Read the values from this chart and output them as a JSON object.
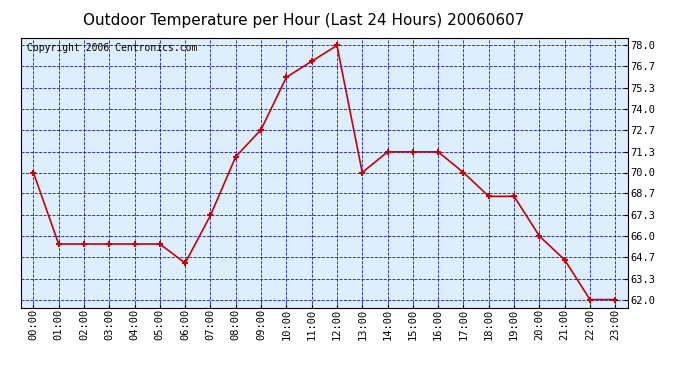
{
  "title": "Outdoor Temperature per Hour (Last 24 Hours) 20060607",
  "copyright_text": "Copyright 2006 Centronics.com",
  "hours": [
    "00:00",
    "01:00",
    "02:00",
    "03:00",
    "04:00",
    "05:00",
    "06:00",
    "07:00",
    "08:00",
    "09:00",
    "10:00",
    "11:00",
    "12:00",
    "13:00",
    "14:00",
    "15:00",
    "16:00",
    "17:00",
    "18:00",
    "19:00",
    "20:00",
    "21:00",
    "22:00",
    "23:00"
  ],
  "temps": [
    70.0,
    65.5,
    65.5,
    65.5,
    65.5,
    65.5,
    64.3,
    67.3,
    71.0,
    72.7,
    76.0,
    77.0,
    78.0,
    70.0,
    71.3,
    71.3,
    71.3,
    70.0,
    68.5,
    68.5,
    66.0,
    64.5,
    62.0,
    62.0
  ],
  "ylim": [
    61.5,
    78.5
  ],
  "yticks": [
    62.0,
    63.3,
    64.7,
    66.0,
    67.3,
    68.7,
    70.0,
    71.3,
    72.7,
    74.0,
    75.3,
    76.7,
    78.0
  ],
  "line_color": "#cc0000",
  "marker_color": "#cc0000",
  "bg_color": "#ffffff",
  "plot_bg_color": "#ddeeff",
  "grid_color": "#0000bb",
  "border_color": "#000000",
  "title_fontsize": 11,
  "copyright_fontsize": 7,
  "tick_fontsize": 7.5,
  "marker_size": 5
}
